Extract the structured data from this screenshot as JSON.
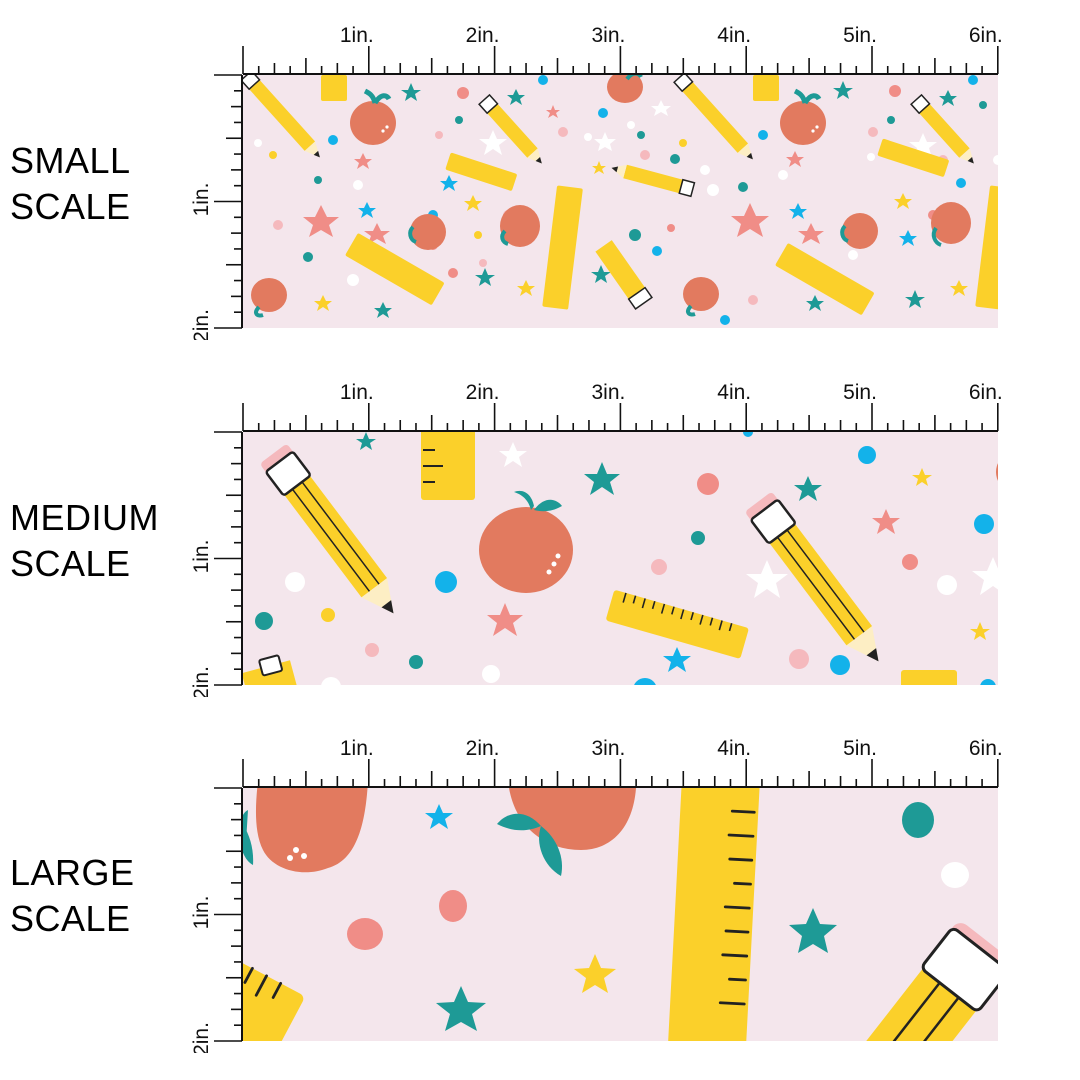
{
  "sections": [
    {
      "id": "small",
      "label_line1": "SMALL",
      "label_line2": "SCALE"
    },
    {
      "id": "medium",
      "label_line1": "MEDIUM",
      "label_line2": "SCALE"
    },
    {
      "id": "large",
      "label_line1": "LARGE",
      "label_line2": "SCALE"
    }
  ],
  "ruler": {
    "top_labels": [
      "1in.",
      "2in.",
      "3in.",
      "4in.",
      "5in.",
      "6in."
    ],
    "side_labels": [
      "1in.",
      "2in."
    ]
  },
  "colors": {
    "background": "#f4e6ec",
    "yellow": "#fbd02a",
    "apple": "#e27a5f",
    "teal": "#1e9a96",
    "coral": "#f08d87",
    "pink": "#f5b9bd",
    "blue": "#13b2ea",
    "white": "#ffffff"
  }
}
